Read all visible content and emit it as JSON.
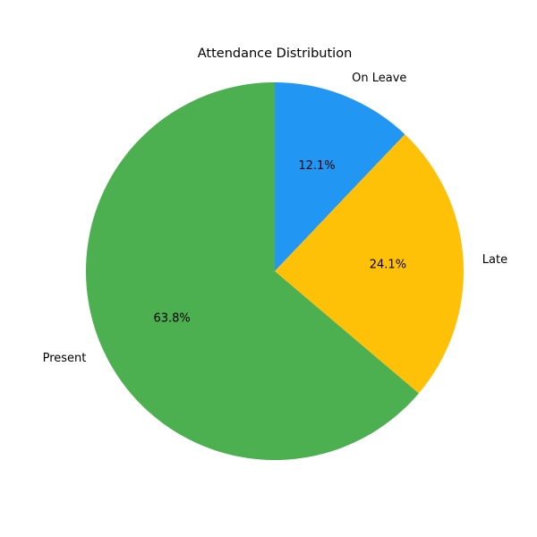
{
  "chart_data": {
    "type": "pie",
    "title": "Attendance Distribution",
    "start_angle_deg": 90,
    "direction": "clockwise",
    "slices": [
      {
        "label": "On Leave",
        "value": 12.1,
        "pct_label": "12.1%",
        "color": "#2196F3"
      },
      {
        "label": "Late",
        "value": 24.1,
        "pct_label": "24.1%",
        "color": "#FFC107"
      },
      {
        "label": "Present",
        "value": 63.8,
        "pct_label": "63.8%",
        "color": "#4CAF50"
      }
    ]
  }
}
